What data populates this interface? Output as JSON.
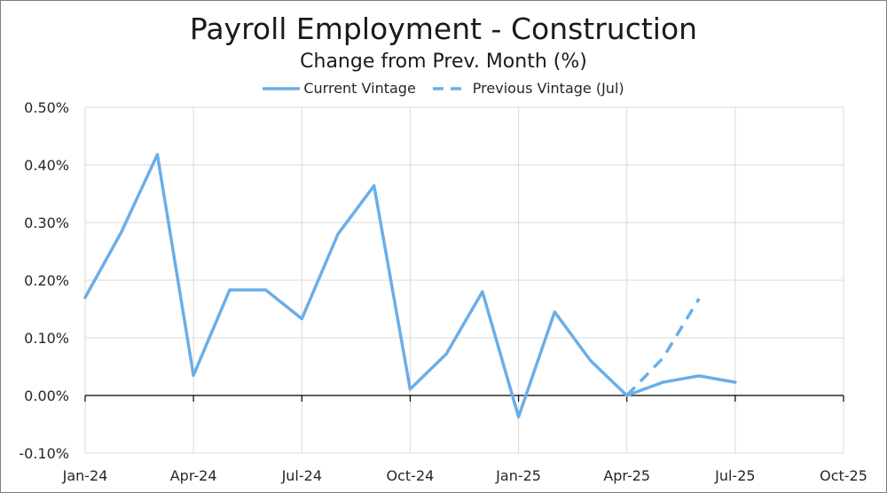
{
  "chart_data": {
    "type": "line",
    "title": "Payroll Employment - Construction",
    "subtitle": "Change from Prev. Month (%)",
    "xlabel": "",
    "ylabel": "",
    "ylim": [
      -0.1,
      0.5
    ],
    "yticks": [
      -0.1,
      0.0,
      0.1,
      0.2,
      0.3,
      0.4,
      0.5
    ],
    "ytick_labels": [
      "-0.10%",
      "0.00%",
      "0.10%",
      "0.20%",
      "0.30%",
      "0.40%",
      "0.50%"
    ],
    "xlim": [
      0,
      21
    ],
    "xticks": [
      0,
      3,
      6,
      9,
      12,
      15,
      18,
      21
    ],
    "xtick_labels": [
      "Jan-24",
      "Apr-24",
      "Jul-24",
      "Oct-24",
      "Jan-25",
      "Apr-25",
      "Jul-25",
      "Oct-25"
    ],
    "grid": true,
    "legend_position": "top-center",
    "series": [
      {
        "name": "Current Vintage",
        "style": "solid",
        "color": "#6aaeea",
        "x": [
          0,
          1,
          2,
          3,
          4,
          5,
          6,
          7,
          8,
          9,
          10,
          11,
          12,
          13,
          14,
          15,
          16,
          17,
          18
        ],
        "values": [
          0.17,
          0.283,
          0.418,
          0.035,
          0.183,
          0.183,
          0.133,
          0.28,
          0.364,
          0.011,
          0.072,
          0.18,
          -0.037,
          0.145,
          0.06,
          0.0,
          0.023,
          0.034,
          0.023
        ]
      },
      {
        "name": "Previous Vintage (Jul)",
        "style": "dashed",
        "color": "#6aaeea",
        "x": [
          15,
          16,
          17
        ],
        "values": [
          0.0,
          0.065,
          0.168
        ]
      }
    ]
  }
}
